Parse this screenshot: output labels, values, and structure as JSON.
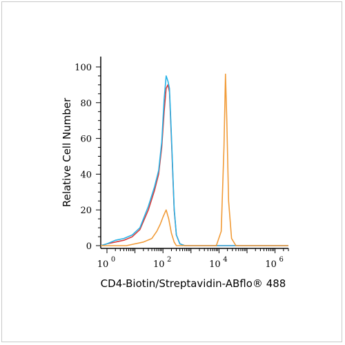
{
  "chart_data": {
    "type": "line",
    "xlabel": "CD4-Biotin/Streptavidin-ABflo® 488",
    "ylabel": "Relative Cell Number",
    "x_scale": "log",
    "xlim": [
      0.6,
      3000000
    ],
    "ylim": [
      0,
      100
    ],
    "x_ticks": [
      {
        "base": "10",
        "exp": "0",
        "value": 1
      },
      {
        "base": "10",
        "exp": "2",
        "value": 100
      },
      {
        "base": "10",
        "exp": "4",
        "value": 10000
      },
      {
        "base": "10",
        "exp": "6",
        "value": 1000000
      }
    ],
    "y_ticks": [
      "0",
      "20",
      "40",
      "60",
      "80",
      "100"
    ],
    "grid": false,
    "legend": "none",
    "series": [
      {
        "color": "#d93b3b",
        "x": [
          0.6,
          1,
          2,
          4,
          8,
          15,
          30,
          50,
          70,
          90,
          110,
          130,
          150,
          170,
          200,
          250,
          300,
          400,
          600,
          1000,
          5000,
          3000000
        ],
        "y": [
          0,
          1,
          2,
          3,
          5,
          9,
          20,
          31,
          40,
          55,
          75,
          88,
          90,
          86,
          60,
          20,
          6,
          1,
          0,
          0,
          0,
          0
        ]
      },
      {
        "color": "#27b2e6",
        "x": [
          0.6,
          1,
          2,
          4,
          8,
          15,
          30,
          50,
          70,
          90,
          110,
          130,
          150,
          170,
          200,
          250,
          300,
          400,
          600,
          1000,
          5000,
          3000000
        ],
        "y": [
          0,
          1,
          3,
          4,
          6,
          10,
          22,
          33,
          42,
          58,
          82,
          95,
          92,
          88,
          62,
          21,
          6,
          1,
          0,
          0,
          0,
          0
        ]
      },
      {
        "color": "#f19b37",
        "x": [
          0.6,
          2,
          5,
          10,
          20,
          40,
          60,
          80,
          100,
          130,
          160,
          200,
          250,
          300,
          400,
          600,
          1000,
          3000,
          8000,
          12000,
          15000,
          17000,
          19000,
          22000,
          28000,
          40000,
          100000,
          3000000
        ],
        "y": [
          0,
          0,
          0,
          1,
          2,
          4,
          8,
          12,
          16,
          20,
          15,
          7,
          2,
          0,
          0,
          0,
          0,
          0,
          0,
          8,
          55,
          96,
          70,
          25,
          4,
          0,
          0,
          0
        ]
      }
    ]
  }
}
